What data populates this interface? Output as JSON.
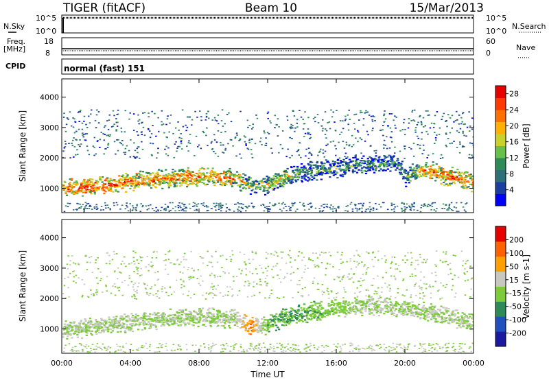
{
  "header": {
    "title": "TIGER (fitACF)",
    "beam": "Beam 10",
    "date": "15/Mar/2013"
  },
  "strips": {
    "nsky_label": "N.Sky",
    "nsky_ticks": [
      "10^5",
      "10^0"
    ],
    "nsearch_label": "N.Search",
    "nsearch_ticks": [
      "10^5",
      "10^0"
    ],
    "freq_label": "Freq.",
    "freq_unit": "[MHz]",
    "freq_ticks": [
      "18",
      "8"
    ],
    "nave_label": "Nave",
    "nave_ticks": [
      "60",
      "0"
    ],
    "cpid_label": "CPID",
    "cpid_value": "normal (fast) 151"
  },
  "chart_data": [
    {
      "type": "heatmap",
      "panel": "power",
      "ylabel": "Slant Range [km]",
      "yticks": [
        "4000",
        "3000",
        "2000",
        "1000"
      ],
      "ylim": [
        200,
        4600
      ],
      "x_ticks": [
        "00:00",
        "04:00",
        "08:00",
        "12:00",
        "16:00",
        "20:00",
        "00:00"
      ],
      "colorbar_label": "Power [dB]",
      "colorbar_ticks": [
        "28",
        "24",
        "20",
        "16",
        "12",
        "8",
        "4"
      ],
      "colorbar_range": [
        0,
        30
      ],
      "colors": [
        "#0000ff",
        "#1a3fa0",
        "#2f6f7a",
        "#2e8b57",
        "#66c04a",
        "#c8d22a",
        "#ffb000",
        "#ff7000",
        "#ff3a00",
        "#e60000"
      ],
      "series": [
        {
          "x": [
            0,
            2,
            4,
            6,
            8,
            10,
            11,
            12,
            13,
            14,
            16,
            18,
            19.5,
            20,
            21,
            22,
            24
          ],
          "y": [
            1000,
            1100,
            1250,
            1350,
            1400,
            1350,
            1100,
            1150,
            1400,
            1550,
            1700,
            1800,
            1850,
            1400,
            1650,
            1500,
            1200
          ],
          "value": [
            24,
            26,
            24,
            22,
            24,
            22,
            14,
            16,
            18,
            12,
            12,
            12,
            10,
            10,
            22,
            24,
            22
          ]
        }
      ]
    },
    {
      "type": "heatmap",
      "panel": "velocity",
      "ylabel": "Slant Range [km]",
      "yticks": [
        "4000",
        "3000",
        "2000",
        "1000"
      ],
      "ylim": [
        200,
        4600
      ],
      "x_ticks": [
        "00:00",
        "04:00",
        "08:00",
        "12:00",
        "16:00",
        "20:00",
        "00:00"
      ],
      "xlabel": "Time UT",
      "colorbar_label": "Velocity [m s-1]",
      "colorbar_ticks": [
        "200",
        "100",
        "50",
        "15",
        "-15",
        "-50",
        "-100",
        "-200"
      ],
      "colorbar_range": [
        -250,
        250
      ],
      "colors": [
        "#1a1aa0",
        "#2050c0",
        "#2e8b57",
        "#7ccc3a",
        "#c8c8c0",
        "#ffa000",
        "#ff6000",
        "#e60000"
      ],
      "series": [
        {
          "x": [
            0,
            2,
            4,
            6,
            8,
            10,
            11,
            12,
            13,
            14,
            16,
            18,
            20,
            22,
            24
          ],
          "y": [
            1000,
            1100,
            1250,
            1350,
            1400,
            1350,
            1100,
            1150,
            1400,
            1550,
            1700,
            1800,
            1700,
            1500,
            1250
          ],
          "value": [
            0,
            0,
            0,
            0,
            -5,
            0,
            120,
            -60,
            -60,
            -60,
            -30,
            0,
            0,
            0,
            0
          ]
        }
      ]
    }
  ]
}
